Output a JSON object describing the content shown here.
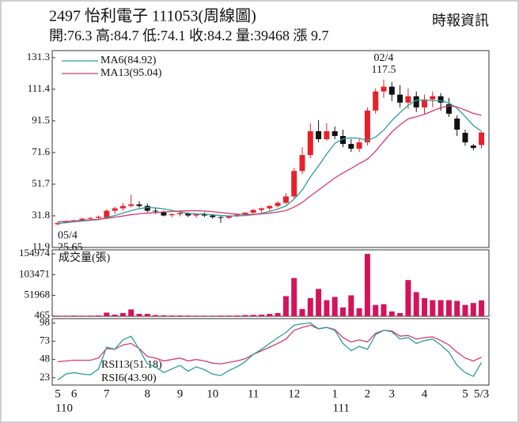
{
  "header": {
    "title": "2497 怡利電子 111053(周線圖)",
    "subtitle": "開:76.3 高:84.7 低:74.1 收:84.2 量:39468 漲 9.7",
    "source": "時報資訊"
  },
  "chart_data": [
    {
      "type": "candlestick",
      "categories": [
        "5",
        null,
        "6",
        null,
        null,
        null,
        "7",
        null,
        null,
        null,
        null,
        "8",
        null,
        null,
        null,
        "9",
        null,
        null,
        null,
        "10",
        null,
        null,
        null,
        null,
        "11",
        null,
        null,
        null,
        null,
        "12",
        null,
        null,
        null,
        null,
        "1",
        null,
        null,
        null,
        "2",
        null,
        null,
        "3",
        null,
        null,
        null,
        "4",
        null,
        null,
        null,
        null,
        "5",
        null,
        "5/3"
      ],
      "year_labels": [
        "110",
        null,
        null,
        null,
        null,
        null,
        null,
        null,
        null,
        null,
        null,
        null,
        null,
        null,
        null,
        null,
        null,
        null,
        null,
        null,
        null,
        null,
        null,
        null,
        null,
        null,
        null,
        null,
        null,
        null,
        null,
        null,
        null,
        null,
        "111",
        null,
        null,
        null,
        null,
        null,
        null,
        null,
        null,
        null,
        null,
        null,
        null,
        null,
        null,
        null,
        null,
        null,
        null
      ],
      "open": [
        26.5,
        27.3,
        28.5,
        29,
        30,
        30.5,
        30.8,
        35,
        36.5,
        38,
        39,
        38,
        35,
        34.5,
        32.2,
        32.8,
        33.5,
        32,
        33,
        32,
        31,
        30.5,
        31.5,
        32.5,
        33.8,
        35.5,
        36.5,
        38,
        40,
        44,
        60,
        70,
        85,
        80,
        85,
        82,
        77,
        74,
        78,
        98,
        110,
        113,
        108,
        103,
        107,
        100,
        105,
        107,
        102,
        93,
        84,
        76,
        76.3
      ],
      "high": [
        27.8,
        29,
        29.5,
        30.5,
        31,
        32,
        36,
        37.5,
        40,
        45,
        41,
        39.5,
        36.5,
        35,
        33.5,
        34,
        34,
        33.5,
        34,
        33,
        32,
        32,
        33,
        34,
        36,
        37,
        38.5,
        41,
        46,
        62,
        75,
        90,
        92,
        90,
        88,
        86,
        80,
        80,
        100,
        112,
        117.5,
        116,
        114,
        112,
        110,
        108,
        110,
        109,
        106,
        95,
        86,
        77,
        84.7
      ],
      "low": [
        25.65,
        27,
        28,
        28.5,
        29.5,
        30,
        30,
        33,
        35,
        37,
        37,
        34,
        33,
        31.5,
        31,
        31.5,
        31,
        30.5,
        31,
        30,
        27.5,
        30,
        31,
        31.5,
        33,
        34,
        35,
        37,
        39,
        43,
        58,
        68,
        78,
        79,
        80,
        75,
        72,
        72,
        76,
        96,
        106,
        104,
        100,
        99,
        97,
        96,
        100,
        98,
        94,
        82,
        76,
        73,
        74.1
      ],
      "close": [
        27.3,
        28.5,
        29,
        30,
        30.5,
        31.2,
        35,
        36.5,
        38,
        39,
        38,
        35,
        34.5,
        32,
        32.8,
        33.5,
        32,
        33,
        32,
        31,
        30.5,
        31.5,
        32.5,
        33.8,
        35.5,
        36.5,
        38,
        40,
        44,
        60,
        70,
        85,
        80,
        85,
        82,
        77,
        74,
        78,
        98,
        110,
        113,
        108,
        103,
        107,
        100,
        105,
        107,
        103,
        96,
        86,
        78,
        74.5,
        84.2
      ],
      "up_color": "#e8202a",
      "down_color": "#111111",
      "ylim": [
        11.9,
        135.7
      ],
      "yticks": [
        11.9,
        31.8,
        51.7,
        71.6,
        91.5,
        111.4,
        131.3
      ],
      "series": [
        {
          "name": "MA6(84.92)",
          "color": "#2a9d9e",
          "values": [
            27,
            27.5,
            28,
            28.5,
            29,
            29.4,
            30.7,
            32,
            33.5,
            35,
            36.3,
            37,
            36.8,
            36.2,
            35.2,
            34.3,
            33.3,
            33,
            32.9,
            32.4,
            32,
            31.7,
            31.8,
            32,
            32.5,
            33.4,
            34.6,
            36.1,
            38,
            42.3,
            48,
            56.2,
            63.2,
            70.7,
            77.3,
            80.2,
            80.8,
            80.5,
            79.2,
            81.3,
            85.7,
            91.7,
            96.7,
            101.3,
            104.6,
            104.5,
            104.2,
            104.2,
            102.8,
            99.5,
            94.3,
            88.6,
            84.92
          ]
        },
        {
          "name": "MA13(95.04)",
          "color": "#d63a6e",
          "values": [
            28,
            28.3,
            28.6,
            29,
            29.3,
            29.6,
            30.2,
            30.9,
            31.7,
            32.5,
            33.1,
            33.5,
            33.8,
            34.2,
            34.6,
            34.8,
            35,
            35,
            34.8,
            34.4,
            33.9,
            33.3,
            32.9,
            32.7,
            32.7,
            33,
            33.5,
            34.2,
            35.1,
            37.3,
            40.2,
            44.3,
            48,
            51.8,
            55.6,
            58.8,
            61.6,
            64.7,
            67.4,
            72.4,
            78.6,
            84.6,
            89,
            92.8,
            94.1,
            95.6,
            97.8,
            99.8,
            101,
            100.3,
            98.3,
            96.2,
            95.04
          ]
        }
      ],
      "low_annotation": {
        "date": "05/4",
        "value": 25.65
      },
      "high_annotation": {
        "date": "02/4",
        "value": 117.5
      }
    },
    {
      "type": "bar",
      "title": "成交量(張)",
      "color": "#d4145a",
      "values": [
        1500,
        1500,
        1800,
        1500,
        1600,
        2000,
        9000,
        4000,
        8000,
        17000,
        6000,
        6000,
        3000,
        2500,
        2000,
        2000,
        1800,
        1500,
        1500,
        1500,
        1800,
        1800,
        2000,
        3000,
        3500,
        4000,
        6000,
        8000,
        50000,
        95000,
        18000,
        45000,
        68000,
        40000,
        48000,
        22000,
        52000,
        20000,
        154974,
        28000,
        30000,
        12000,
        8000,
        90000,
        60000,
        45000,
        40000,
        40000,
        40000,
        38000,
        28000,
        33000,
        39468
      ],
      "ylim": [
        0,
        165000
      ],
      "yticks": [
        465,
        51968,
        103471,
        154974
      ]
    },
    {
      "type": "line",
      "series": [
        {
          "name": "RSI13(51.18)",
          "color": "#d63a6e",
          "values": [
            45,
            46,
            47,
            47,
            47,
            50,
            63,
            62,
            68,
            70,
            63,
            52,
            50,
            46,
            48,
            50,
            46,
            48,
            46,
            43,
            42,
            44,
            46,
            49,
            55,
            60,
            65,
            70,
            76,
            88,
            92,
            95,
            90,
            92,
            89,
            78,
            72,
            75,
            72,
            84,
            88,
            87,
            80,
            81,
            76,
            78,
            79,
            74,
            68,
            58,
            50,
            46,
            51.18
          ]
        },
        {
          "name": "RSI6(43.90)",
          "color": "#2a9d9e",
          "values": [
            20,
            28,
            30,
            28,
            27,
            35,
            65,
            62,
            75,
            80,
            62,
            42,
            38,
            30,
            35,
            40,
            32,
            38,
            34,
            28,
            26,
            33,
            38,
            45,
            55,
            62,
            70,
            78,
            85,
            95,
            97,
            98,
            90,
            92,
            88,
            70,
            60,
            66,
            62,
            82,
            88,
            86,
            76,
            78,
            70,
            74,
            76,
            68,
            58,
            40,
            30,
            25,
            43.9
          ]
        }
      ],
      "ylim": [
        13,
        104
      ],
      "yticks": [
        23,
        48,
        73,
        98
      ]
    }
  ]
}
